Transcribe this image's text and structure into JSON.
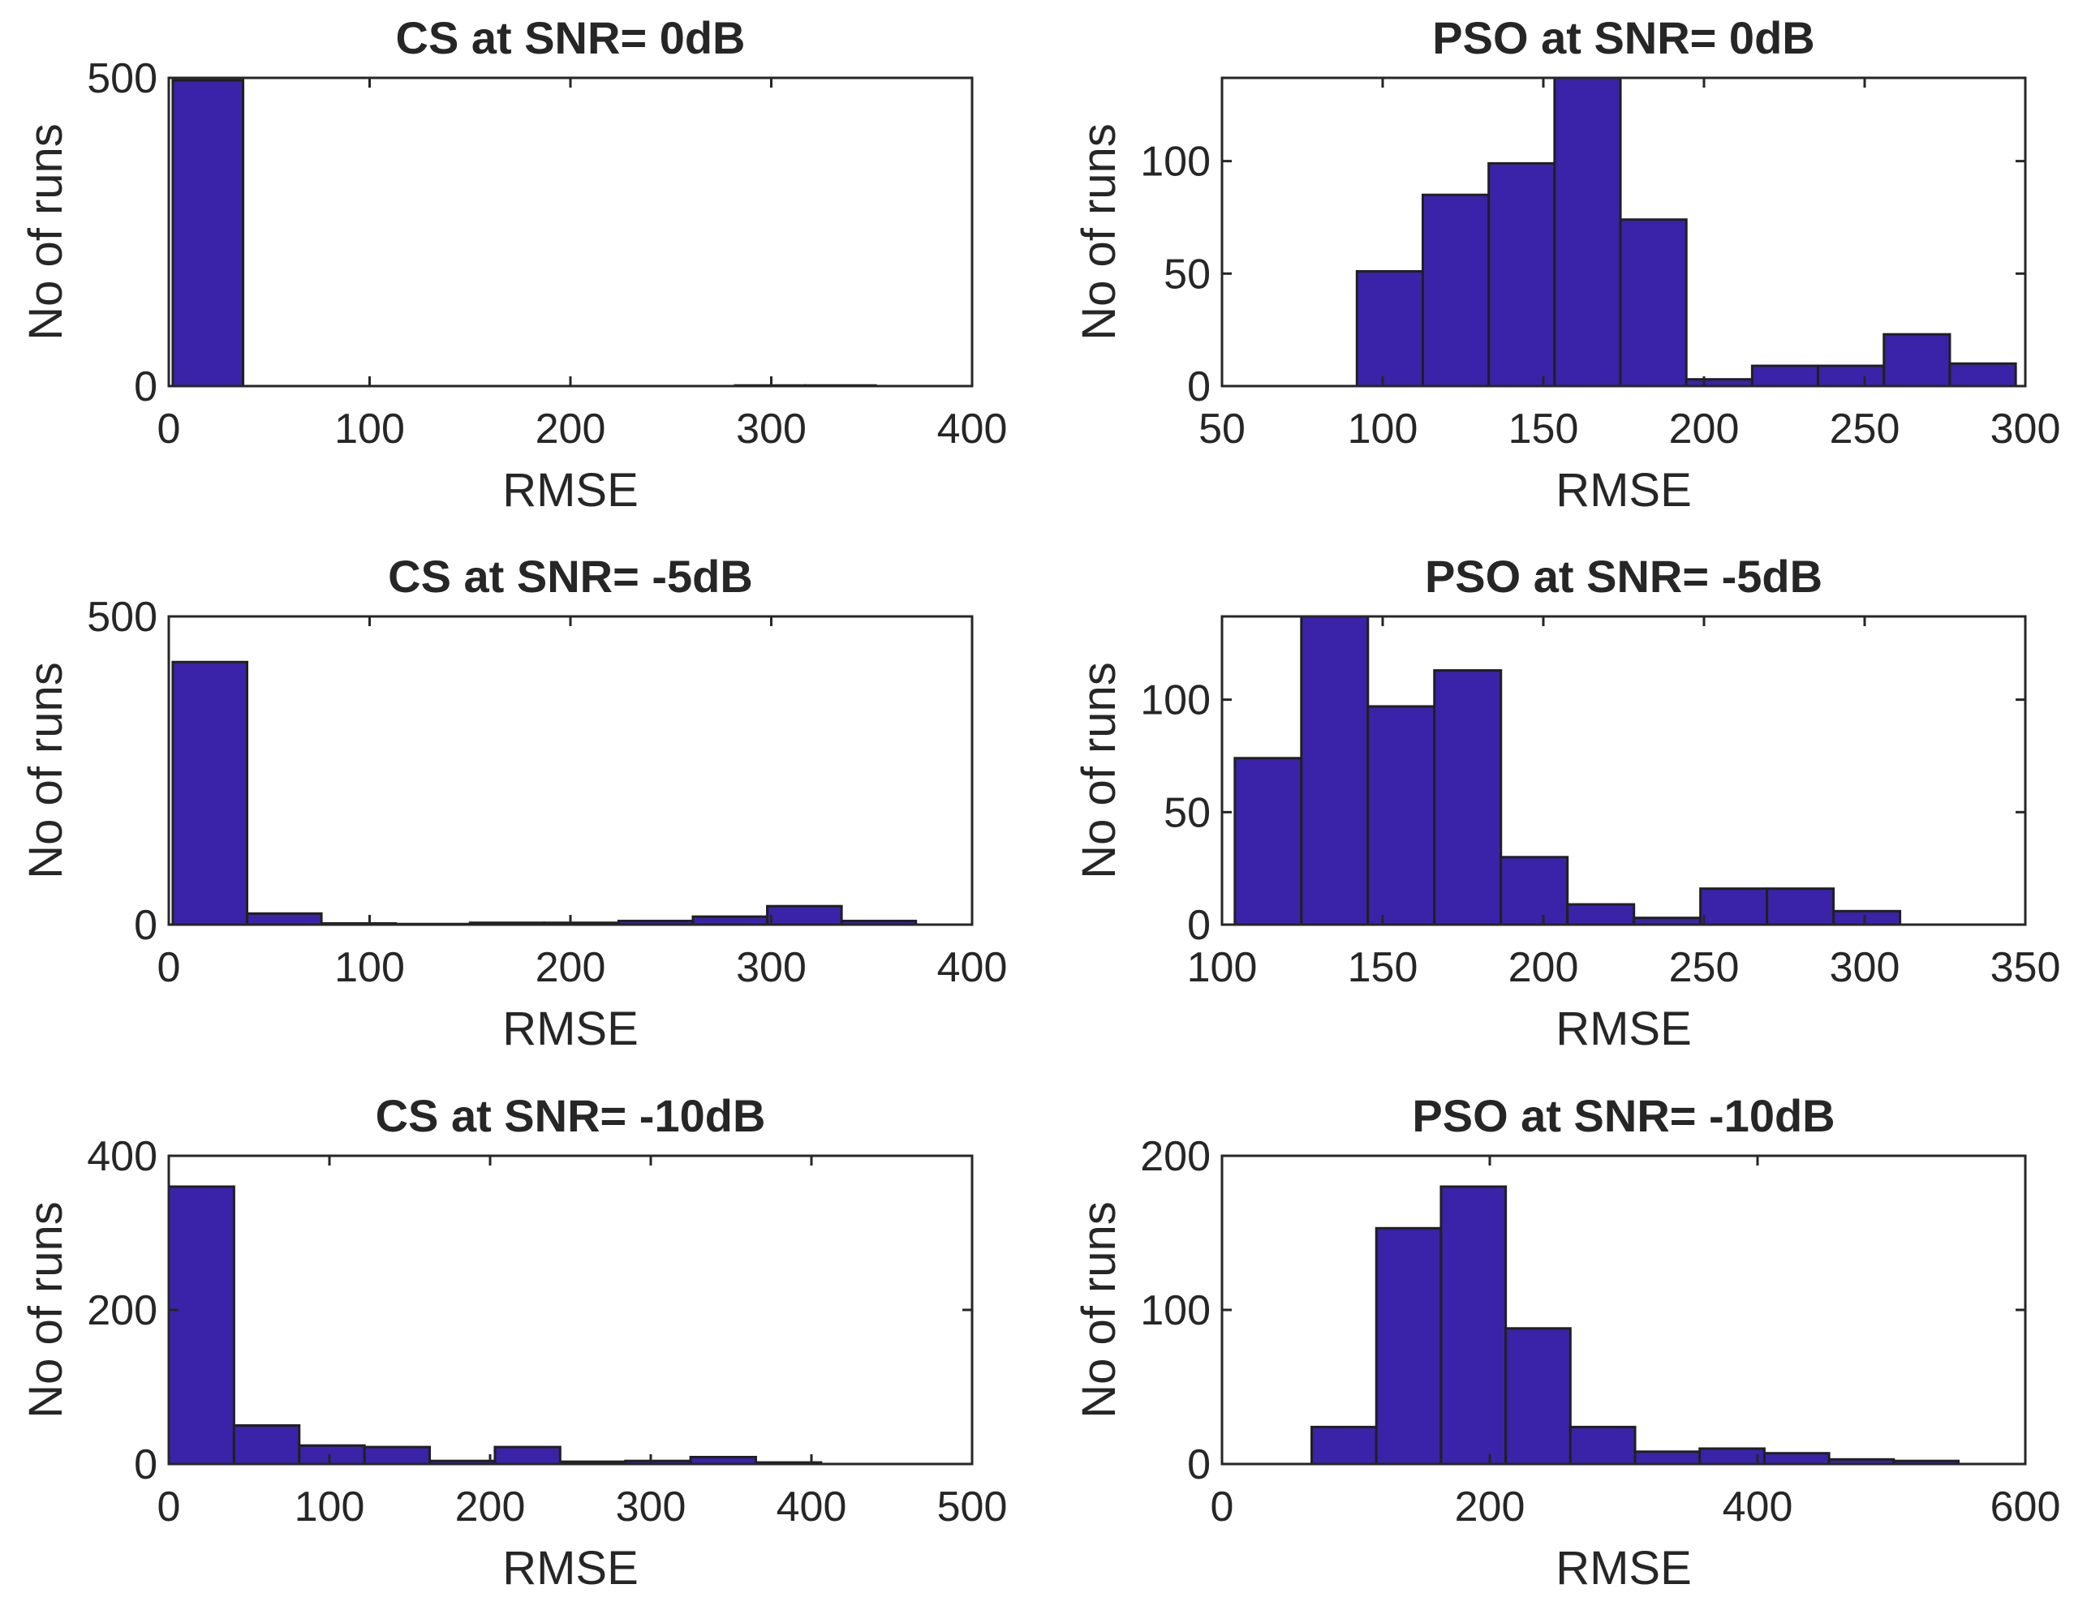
{
  "style": {
    "bar_color": "#3a23a8",
    "bar_edge": "#202020",
    "axis_color": "#262626"
  },
  "chart_data": [
    {
      "type": "bar",
      "title": "CS at SNR= 0dB",
      "xlabel": "RMSE",
      "ylabel": "No of runs",
      "xlim": [
        0,
        400
      ],
      "ylim": [
        0,
        500
      ],
      "xticks": [
        "0",
        "100",
        "200",
        "300",
        "400"
      ],
      "xtick_values": [
        0,
        100,
        200,
        300,
        400
      ],
      "yticks": [
        "0",
        "500"
      ],
      "ytick_values": [
        0,
        500
      ],
      "bin_edges": [
        2,
        37,
        72,
        107,
        142,
        177,
        212,
        247,
        282,
        317,
        352
      ],
      "values": [
        496,
        0,
        0,
        0,
        0,
        0,
        0,
        0,
        1,
        1
      ]
    },
    {
      "type": "bar",
      "title": "PSO at SNR= 0dB",
      "xlabel": "RMSE",
      "ylabel": "No of runs",
      "xlim": [
        50,
        300
      ],
      "ylim": [
        0,
        137
      ],
      "xticks": [
        "50",
        "100",
        "150",
        "200",
        "250",
        "300"
      ],
      "xtick_values": [
        50,
        100,
        150,
        200,
        250,
        300
      ],
      "yticks": [
        "0",
        "50",
        "100"
      ],
      "ytick_values": [
        0,
        50,
        100
      ],
      "bin_edges": [
        92,
        112.5,
        133,
        153.5,
        174,
        194.5,
        215,
        235.5,
        256,
        276.5,
        297
      ],
      "values": [
        51,
        85,
        99,
        137,
        74,
        3,
        9,
        9,
        23,
        10
      ]
    },
    {
      "type": "bar",
      "title": "CS at SNR= -5dB",
      "xlabel": "RMSE",
      "ylabel": "No of runs",
      "xlim": [
        0,
        400
      ],
      "ylim": [
        0,
        500
      ],
      "xticks": [
        "0",
        "100",
        "200",
        "300",
        "400"
      ],
      "xtick_values": [
        0,
        100,
        200,
        300,
        400
      ],
      "yticks": [
        "0",
        "500"
      ],
      "ytick_values": [
        0,
        500
      ],
      "bin_edges": [
        2,
        39,
        76,
        113,
        150,
        187,
        224,
        261,
        298,
        335,
        372
      ],
      "values": [
        426,
        18,
        2,
        1,
        3,
        3,
        6,
        13,
        30,
        6
      ]
    },
    {
      "type": "bar",
      "title": "PSO at SNR= -5dB",
      "xlabel": "RMSE",
      "ylabel": "No of runs",
      "xlim": [
        100,
        350
      ],
      "ylim": [
        0,
        137
      ],
      "xticks": [
        "100",
        "150",
        "200",
        "250",
        "300",
        "350"
      ],
      "xtick_values": [
        100,
        150,
        200,
        250,
        300,
        350
      ],
      "yticks": [
        "0",
        "50",
        "100"
      ],
      "ytick_values": [
        0,
        50,
        100
      ],
      "bin_edges": [
        104,
        124.7,
        145.4,
        166.1,
        186.8,
        207.5,
        228.2,
        248.9,
        269.6,
        290.3,
        311
      ],
      "values": [
        74,
        137,
        97,
        113,
        30,
        9,
        3,
        16,
        16,
        6
      ]
    },
    {
      "type": "bar",
      "title": "CS at SNR= -10dB",
      "xlabel": "RMSE",
      "ylabel": "No of runs",
      "xlim": [
        0,
        500
      ],
      "ylim": [
        0,
        400
      ],
      "xticks": [
        "0",
        "100",
        "200",
        "300",
        "400",
        "500"
      ],
      "xtick_values": [
        0,
        100,
        200,
        300,
        400,
        500
      ],
      "yticks": [
        "0",
        "200",
        "400"
      ],
      "ytick_values": [
        0,
        200,
        400
      ],
      "bin_edges": [
        0,
        40.6,
        81.2,
        121.8,
        162.4,
        203,
        243.6,
        284.2,
        324.8,
        365.4,
        406
      ],
      "values": [
        360,
        50,
        24,
        22,
        4,
        22,
        3,
        4,
        9,
        2
      ]
    },
    {
      "type": "bar",
      "title": "PSO at SNR= -10dB",
      "xlabel": "RMSE",
      "ylabel": "No of runs",
      "xlim": [
        0,
        600
      ],
      "ylim": [
        0,
        200
      ],
      "xticks": [
        "0",
        "200",
        "400",
        "600"
      ],
      "xtick_values": [
        0,
        200,
        400,
        600
      ],
      "yticks": [
        "0",
        "100",
        "200"
      ],
      "ytick_values": [
        0,
        100,
        200
      ],
      "bin_edges": [
        67,
        115.3,
        163.6,
        211.9,
        260.2,
        308.5,
        356.8,
        405.1,
        453.4,
        501.7,
        550
      ],
      "values": [
        24,
        153,
        180,
        88,
        24,
        8,
        10,
        7,
        3,
        2
      ]
    }
  ]
}
